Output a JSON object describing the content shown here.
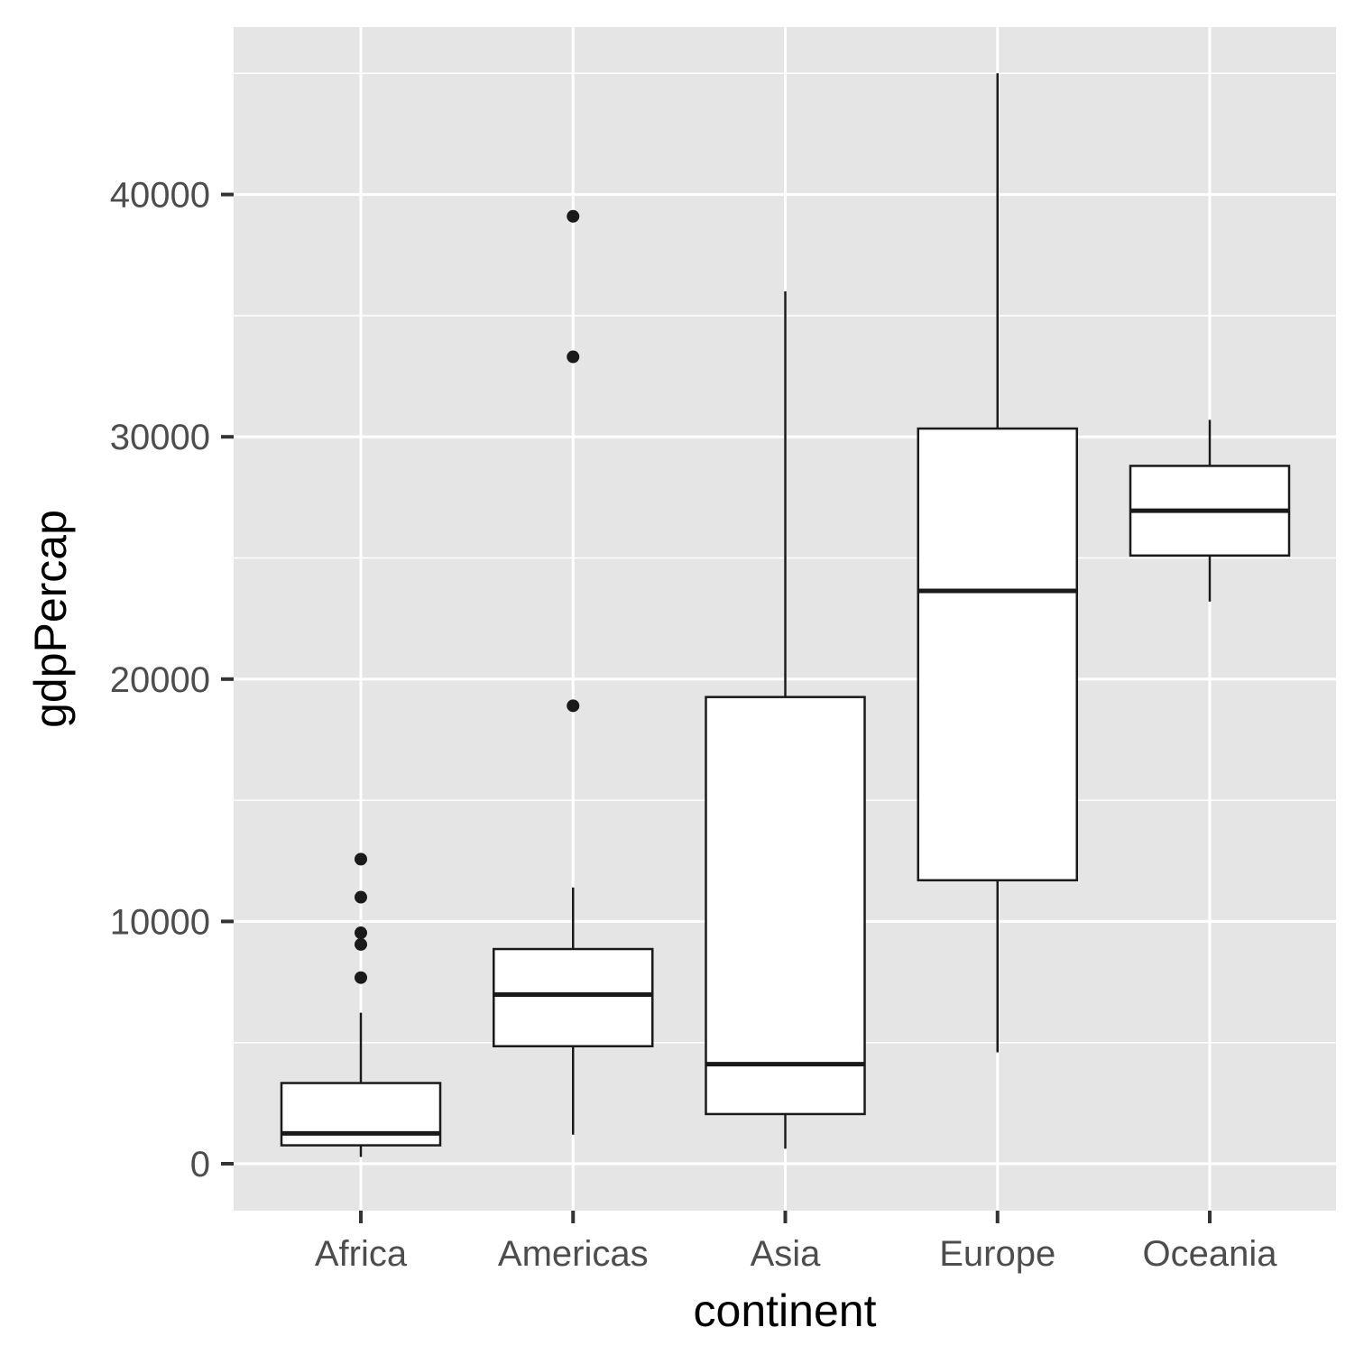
{
  "chart_data": {
    "type": "boxplot",
    "title": "",
    "xlabel": "continent",
    "ylabel": "gdpPercap",
    "ylim": [
      -2000,
      45000
    ],
    "y_ticks": [
      0,
      10000,
      20000,
      30000,
      40000
    ],
    "y_tick_labels": [
      "0",
      "10000",
      "20000",
      "30000",
      "40000"
    ],
    "y_minor_breaks": [
      5000,
      15000,
      25000,
      35000,
      45000
    ],
    "grid": true,
    "legend": "none",
    "categories": [
      "Africa",
      "Americas",
      "Asia",
      "Europe",
      "Oceania"
    ],
    "boxes": [
      {
        "category": "Africa",
        "whisker_low": 280,
        "q1": 760,
        "median": 1250,
        "q3": 3330,
        "whisker_high": 6230,
        "outliers": [
          12570,
          11000,
          9530,
          9050,
          7680
        ]
      },
      {
        "category": "Americas",
        "whisker_low": 1200,
        "q1": 4850,
        "median": 6980,
        "q3": 8860,
        "whisker_high": 11400,
        "outliers": [
          39100,
          33300,
          18900
        ]
      },
      {
        "category": "Asia",
        "whisker_low": 620,
        "q1": 2050,
        "median": 4110,
        "q3": 19260,
        "whisker_high": 36000,
        "outliers": []
      },
      {
        "category": "Europe",
        "whisker_low": 4600,
        "q1": 11700,
        "median": 23640,
        "q3": 30340,
        "whisker_high": 45000,
        "outliers": []
      },
      {
        "category": "Oceania",
        "whisker_low": 23200,
        "q1": 25100,
        "median": 26950,
        "q3": 28800,
        "whisker_high": 30700,
        "outliers": []
      }
    ],
    "colors": {
      "panel_background": "#e5e5e5",
      "grid_major": "#ffffff",
      "grid_minor": "#f2f2f2",
      "box_fill": "#ffffff",
      "box_stroke": "#1a1a1a",
      "outlier": "#1a1a1a",
      "tick_label": "#4d4d4d",
      "axis_title": "#000000"
    }
  }
}
